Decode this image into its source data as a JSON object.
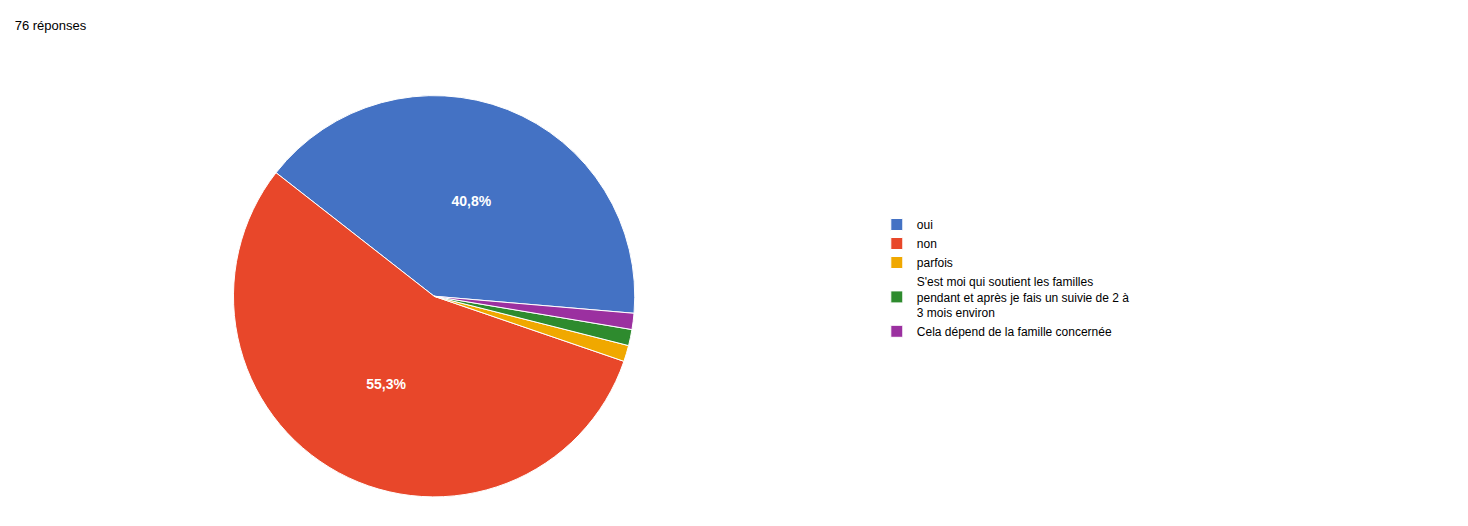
{
  "chart_data": {
    "type": "pie",
    "subtitle": "76 réponses",
    "categories": [
      "oui",
      "non",
      "parfois",
      "S'est moi qui soutient les familles\npendant et après je fais un suivie de 2 à\n3 mois environ",
      "Cela dépend de la famille concernée"
    ],
    "values": [
      40.8,
      55.3,
      1.3,
      1.3,
      1.3
    ],
    "value_labels": [
      "40,8%",
      "55,3%",
      null,
      null,
      null
    ],
    "data_labels": true,
    "colors": [
      "#4472C4",
      "#E8472A",
      "#F0A800",
      "#2E8B2E",
      "#9B30A0"
    ],
    "legend": "right"
  }
}
